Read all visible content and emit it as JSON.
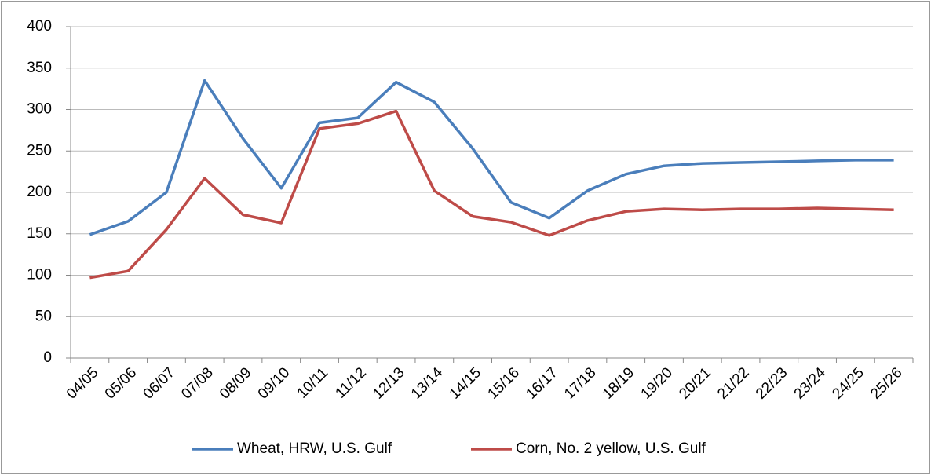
{
  "chart_data": {
    "type": "line",
    "categories": [
      "04/05",
      "05/06",
      "06/07",
      "07/08",
      "08/09",
      "09/10",
      "10/11",
      "11/12",
      "12/13",
      "13/14",
      "14/15",
      "15/16",
      "16/17",
      "17/18",
      "18/19",
      "19/20",
      "20/21",
      "21/22",
      "22/23",
      "23/24",
      "24/25",
      "25/26"
    ],
    "series": [
      {
        "name": "Wheat, HRW, U.S. Gulf",
        "color": "#4a7ebb",
        "values": [
          149,
          165,
          200,
          335,
          265,
          205,
          284,
          290,
          333,
          309,
          253,
          188,
          169,
          202,
          222,
          232,
          235,
          236,
          237,
          238,
          239,
          239
        ]
      },
      {
        "name": "Corn, No. 2 yellow, U.S. Gulf",
        "color": "#be4b48",
        "values": [
          97,
          105,
          155,
          217,
          173,
          163,
          277,
          283,
          298,
          202,
          171,
          164,
          148,
          166,
          177,
          180,
          179,
          180,
          180,
          181,
          180,
          179
        ]
      }
    ],
    "ylim": [
      0,
      400
    ],
    "yticks": [
      0,
      50,
      100,
      150,
      200,
      250,
      300,
      350,
      400
    ],
    "grid": true,
    "legend": "bottom"
  }
}
